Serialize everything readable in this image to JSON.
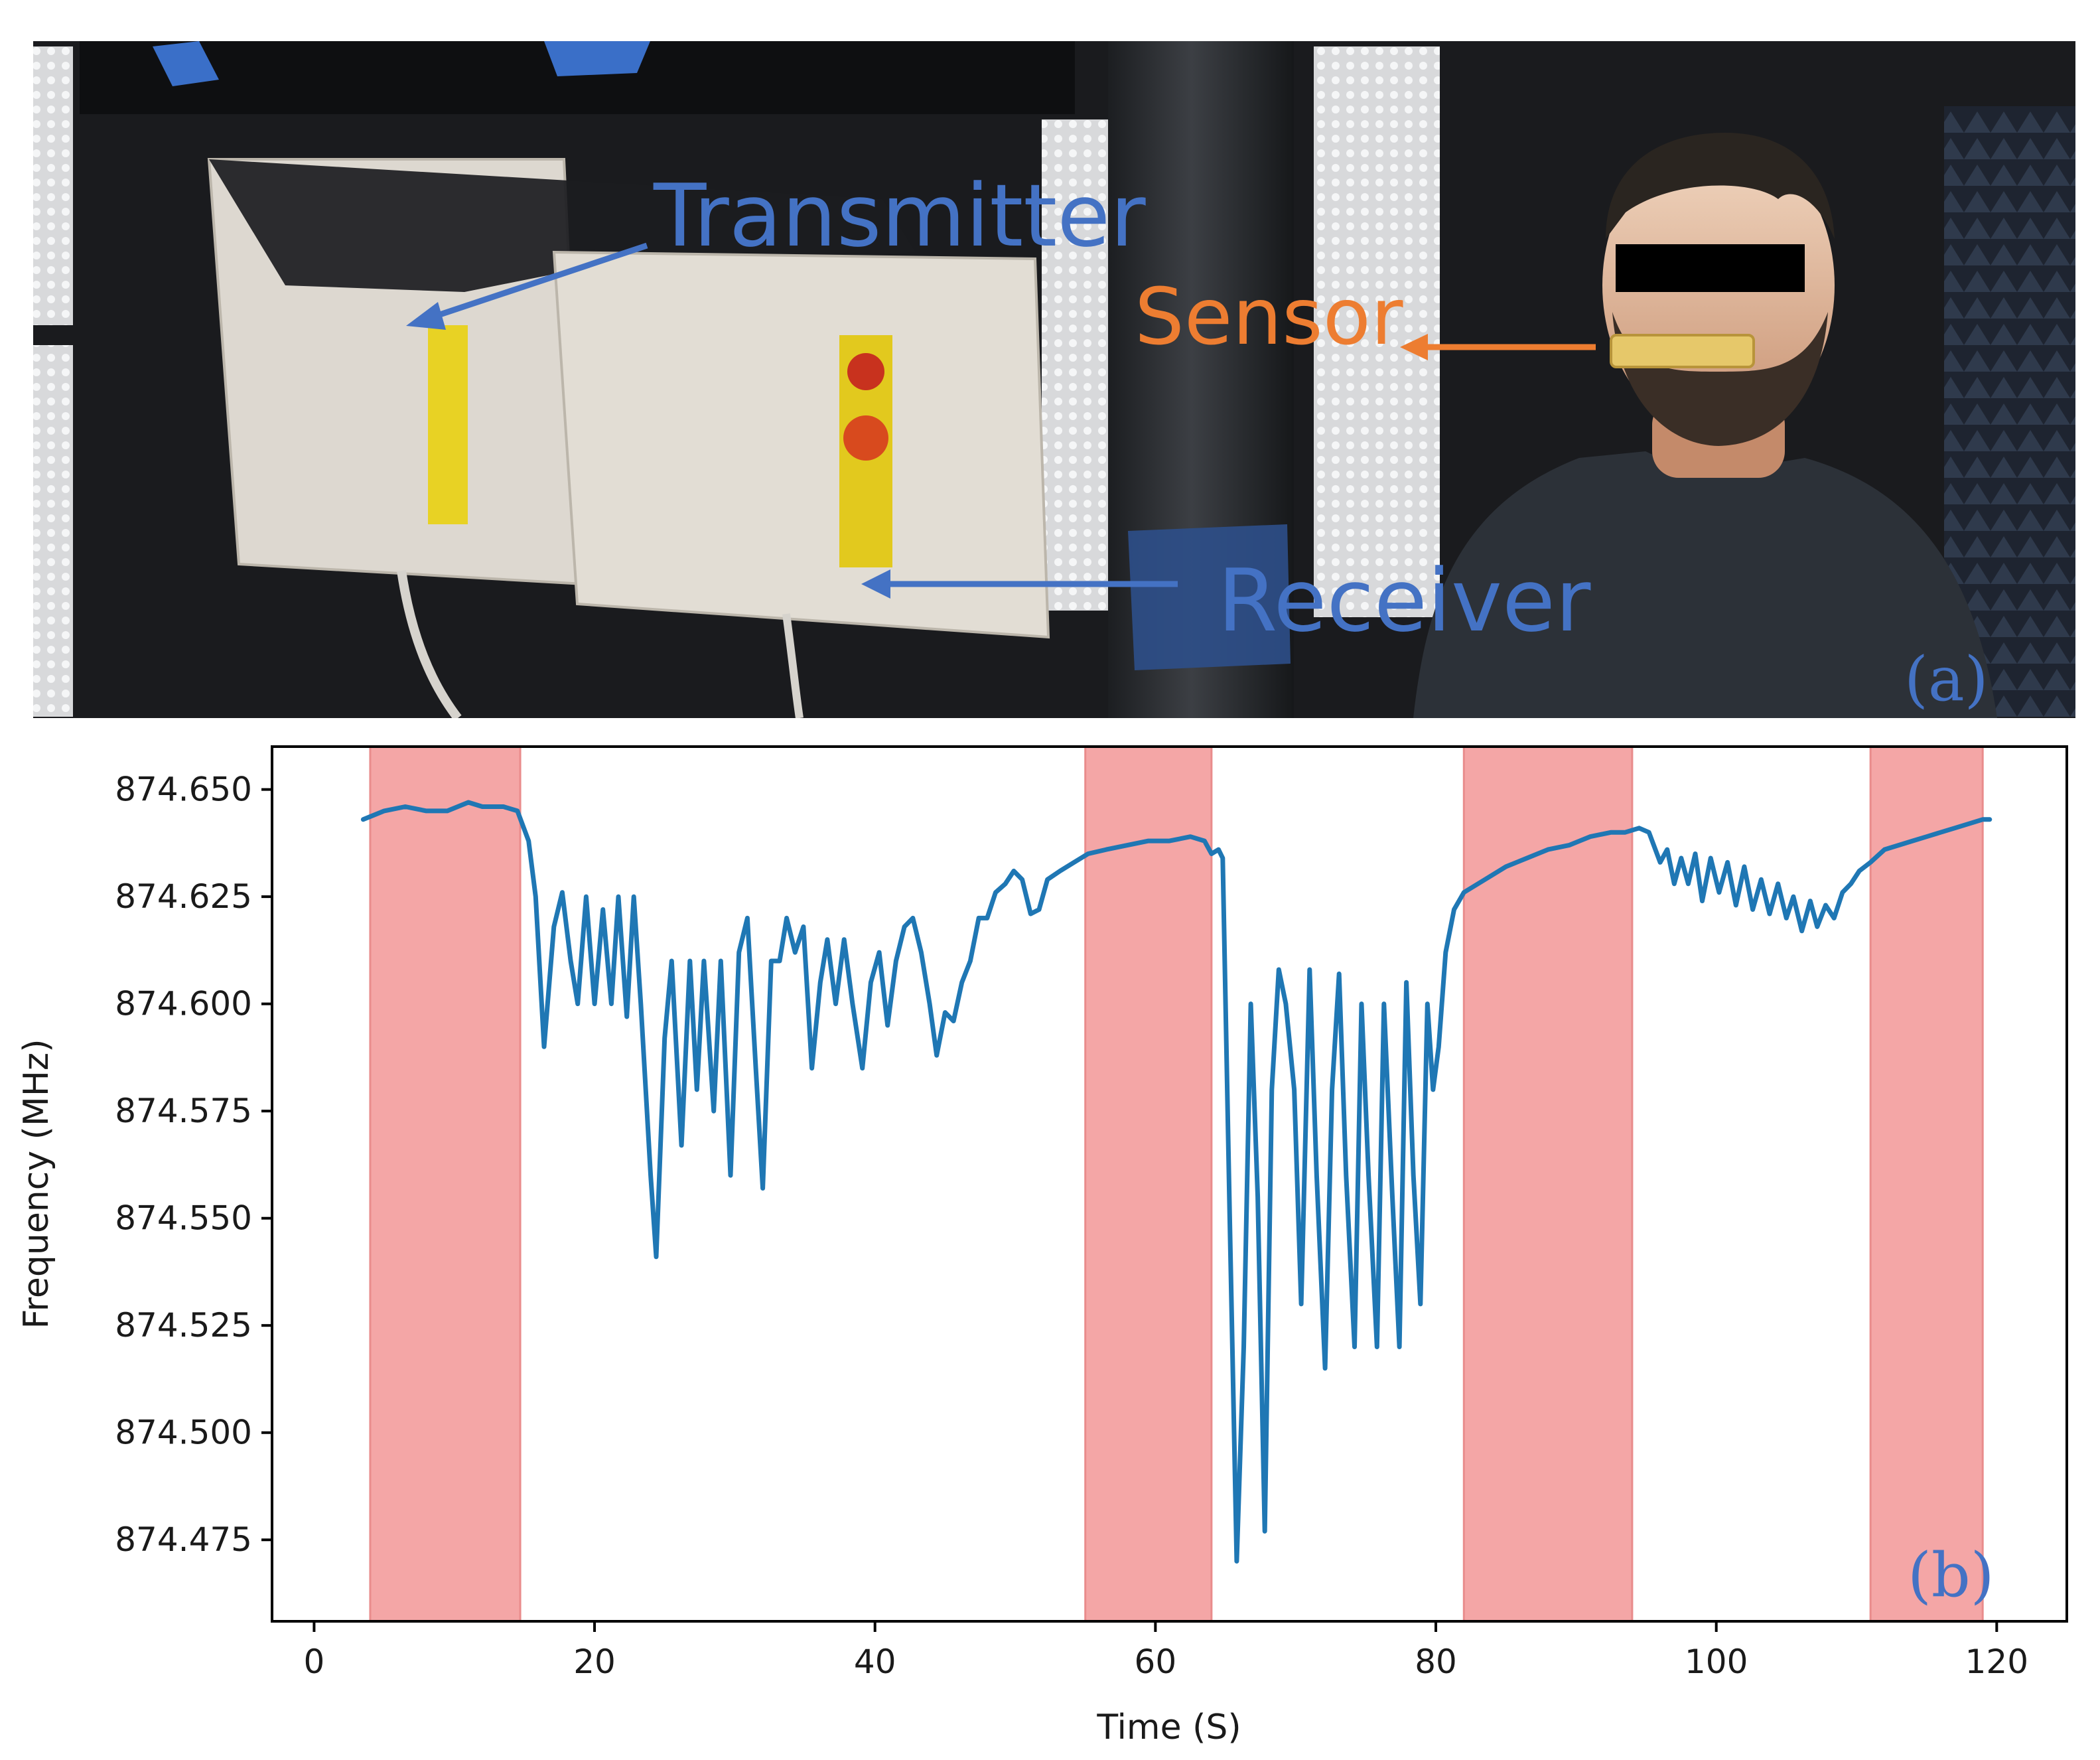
{
  "panel_a": {
    "labels": {
      "transmitter": "Transmitter",
      "sensor": "Sensor",
      "receiver": "Receiver"
    },
    "panel_letter": "(a)",
    "colors": {
      "transmitter": "#4472c4",
      "receiver": "#4472c4",
      "sensor": "#ed7d31",
      "panel_letter": "#4472c4"
    }
  },
  "chart_data": {
    "type": "line",
    "panel_letter": "(b)",
    "xlabel": "Time (S)",
    "ylabel": "Frequency (MHz)",
    "xlim": [
      -3,
      125
    ],
    "ylim": [
      874.456,
      874.66
    ],
    "x_ticks": [
      0,
      20,
      40,
      60,
      80,
      100,
      120
    ],
    "y_ticks": [
      874.475,
      874.5,
      874.525,
      874.55,
      874.575,
      874.6,
      874.625,
      874.65
    ],
    "y_tick_labels": [
      "874.475",
      "874.500",
      "874.525",
      "874.550",
      "874.575",
      "874.600",
      "874.625",
      "874.650"
    ],
    "grid": false,
    "line_color": "#1f77b4",
    "shade_color": "#f4a6a6",
    "shaded_intervals": [
      [
        4,
        14.7
      ],
      [
        55,
        64
      ],
      [
        82,
        94
      ],
      [
        111,
        119
      ]
    ],
    "series": [
      {
        "points": [
          [
            3.5,
            874.643
          ],
          [
            5,
            874.645
          ],
          [
            6.5,
            874.646
          ],
          [
            8,
            874.645
          ],
          [
            9.5,
            874.645
          ],
          [
            11,
            874.647
          ],
          [
            12,
            874.646
          ],
          [
            13.5,
            874.646
          ],
          [
            14.5,
            874.645
          ],
          [
            15.3,
            874.638
          ],
          [
            15.8,
            874.625
          ],
          [
            16.4,
            874.59
          ],
          [
            17.1,
            874.618
          ],
          [
            17.7,
            874.626
          ],
          [
            18.3,
            874.61
          ],
          [
            18.8,
            874.6
          ],
          [
            19.4,
            874.625
          ],
          [
            20,
            874.6
          ],
          [
            20.6,
            874.622
          ],
          [
            21.2,
            874.6
          ],
          [
            21.7,
            874.625
          ],
          [
            22.3,
            874.597
          ],
          [
            22.8,
            874.625
          ],
          [
            23.3,
            874.6
          ],
          [
            24,
            874.56
          ],
          [
            24.4,
            874.541
          ],
          [
            25,
            874.592
          ],
          [
            25.5,
            874.61
          ],
          [
            26.2,
            874.567
          ],
          [
            26.8,
            874.61
          ],
          [
            27.3,
            874.58
          ],
          [
            27.8,
            874.61
          ],
          [
            28.5,
            874.575
          ],
          [
            29,
            874.61
          ],
          [
            29.7,
            874.56
          ],
          [
            30.3,
            874.612
          ],
          [
            30.9,
            874.62
          ],
          [
            31.5,
            874.585
          ],
          [
            32,
            874.557
          ],
          [
            32.6,
            874.61
          ],
          [
            33.2,
            874.61
          ],
          [
            33.7,
            874.62
          ],
          [
            34.3,
            874.612
          ],
          [
            34.9,
            874.618
          ],
          [
            35.5,
            874.585
          ],
          [
            36.1,
            874.605
          ],
          [
            36.6,
            874.615
          ],
          [
            37.2,
            874.6
          ],
          [
            37.8,
            874.615
          ],
          [
            38.4,
            874.6
          ],
          [
            39.1,
            874.585
          ],
          [
            39.7,
            874.605
          ],
          [
            40.3,
            874.612
          ],
          [
            40.9,
            874.595
          ],
          [
            41.5,
            874.61
          ],
          [
            42.1,
            874.618
          ],
          [
            42.7,
            874.62
          ],
          [
            43.3,
            874.612
          ],
          [
            43.9,
            874.6
          ],
          [
            44.4,
            874.588
          ],
          [
            45,
            874.598
          ],
          [
            45.6,
            874.596
          ],
          [
            46.2,
            874.605
          ],
          [
            46.8,
            874.61
          ],
          [
            47.4,
            874.62
          ],
          [
            48,
            874.62
          ],
          [
            48.6,
            874.626
          ],
          [
            49.3,
            874.628
          ],
          [
            49.9,
            874.631
          ],
          [
            50.5,
            874.629
          ],
          [
            51.1,
            874.621
          ],
          [
            51.7,
            874.622
          ],
          [
            52.3,
            874.629
          ],
          [
            53.2,
            874.631
          ],
          [
            54.2,
            874.633
          ],
          [
            55.2,
            874.635
          ],
          [
            56.5,
            874.636
          ],
          [
            58,
            874.637
          ],
          [
            59.5,
            874.638
          ],
          [
            61,
            874.638
          ],
          [
            62.5,
            874.639
          ],
          [
            63.5,
            874.638
          ],
          [
            64,
            874.635
          ],
          [
            64.5,
            874.636
          ],
          [
            64.8,
            874.634
          ],
          [
            65.3,
            874.55
          ],
          [
            65.8,
            874.47
          ],
          [
            66.3,
            874.52
          ],
          [
            66.8,
            874.6
          ],
          [
            67.3,
            874.555
          ],
          [
            67.8,
            874.477
          ],
          [
            68.3,
            874.58
          ],
          [
            68.8,
            874.608
          ],
          [
            69.3,
            874.6
          ],
          [
            69.9,
            874.58
          ],
          [
            70.4,
            874.53
          ],
          [
            71,
            874.608
          ],
          [
            71.5,
            874.56
          ],
          [
            72.1,
            874.515
          ],
          [
            72.6,
            874.58
          ],
          [
            73.1,
            874.607
          ],
          [
            73.6,
            874.56
          ],
          [
            74.2,
            874.52
          ],
          [
            74.7,
            874.6
          ],
          [
            75.2,
            874.56
          ],
          [
            75.8,
            874.52
          ],
          [
            76.3,
            874.6
          ],
          [
            76.9,
            874.555
          ],
          [
            77.4,
            874.52
          ],
          [
            77.9,
            874.605
          ],
          [
            78.4,
            874.56
          ],
          [
            78.9,
            874.53
          ],
          [
            79.4,
            874.6
          ],
          [
            79.8,
            874.58
          ],
          [
            80.2,
            874.59
          ],
          [
            80.7,
            874.612
          ],
          [
            81.3,
            874.622
          ],
          [
            82,
            874.626
          ],
          [
            83.5,
            874.629
          ],
          [
            85,
            874.632
          ],
          [
            86.5,
            874.634
          ],
          [
            88,
            874.636
          ],
          [
            89.5,
            874.637
          ],
          [
            91,
            874.639
          ],
          [
            92.5,
            874.64
          ],
          [
            93.5,
            874.64
          ],
          [
            94.5,
            874.641
          ],
          [
            95.2,
            874.64
          ],
          [
            96,
            874.633
          ],
          [
            96.5,
            874.636
          ],
          [
            97,
            874.628
          ],
          [
            97.5,
            874.634
          ],
          [
            98,
            874.628
          ],
          [
            98.5,
            874.635
          ],
          [
            99,
            874.624
          ],
          [
            99.6,
            874.634
          ],
          [
            100.2,
            874.626
          ],
          [
            100.8,
            874.633
          ],
          [
            101.4,
            874.623
          ],
          [
            102,
            874.632
          ],
          [
            102.6,
            874.622
          ],
          [
            103.2,
            874.629
          ],
          [
            103.8,
            874.621
          ],
          [
            104.4,
            874.628
          ],
          [
            105,
            874.62
          ],
          [
            105.5,
            874.625
          ],
          [
            106.1,
            874.617
          ],
          [
            106.7,
            874.624
          ],
          [
            107.2,
            874.618
          ],
          [
            107.8,
            874.623
          ],
          [
            108.4,
            874.62
          ],
          [
            109,
            874.626
          ],
          [
            109.6,
            874.628
          ],
          [
            110.2,
            874.631
          ],
          [
            111,
            874.633
          ],
          [
            112,
            874.636
          ],
          [
            113,
            874.637
          ],
          [
            114,
            874.638
          ],
          [
            115,
            874.639
          ],
          [
            116,
            874.64
          ],
          [
            117,
            874.641
          ],
          [
            118,
            874.642
          ],
          [
            119,
            874.643
          ],
          [
            119.5,
            874.643
          ]
        ]
      }
    ]
  }
}
